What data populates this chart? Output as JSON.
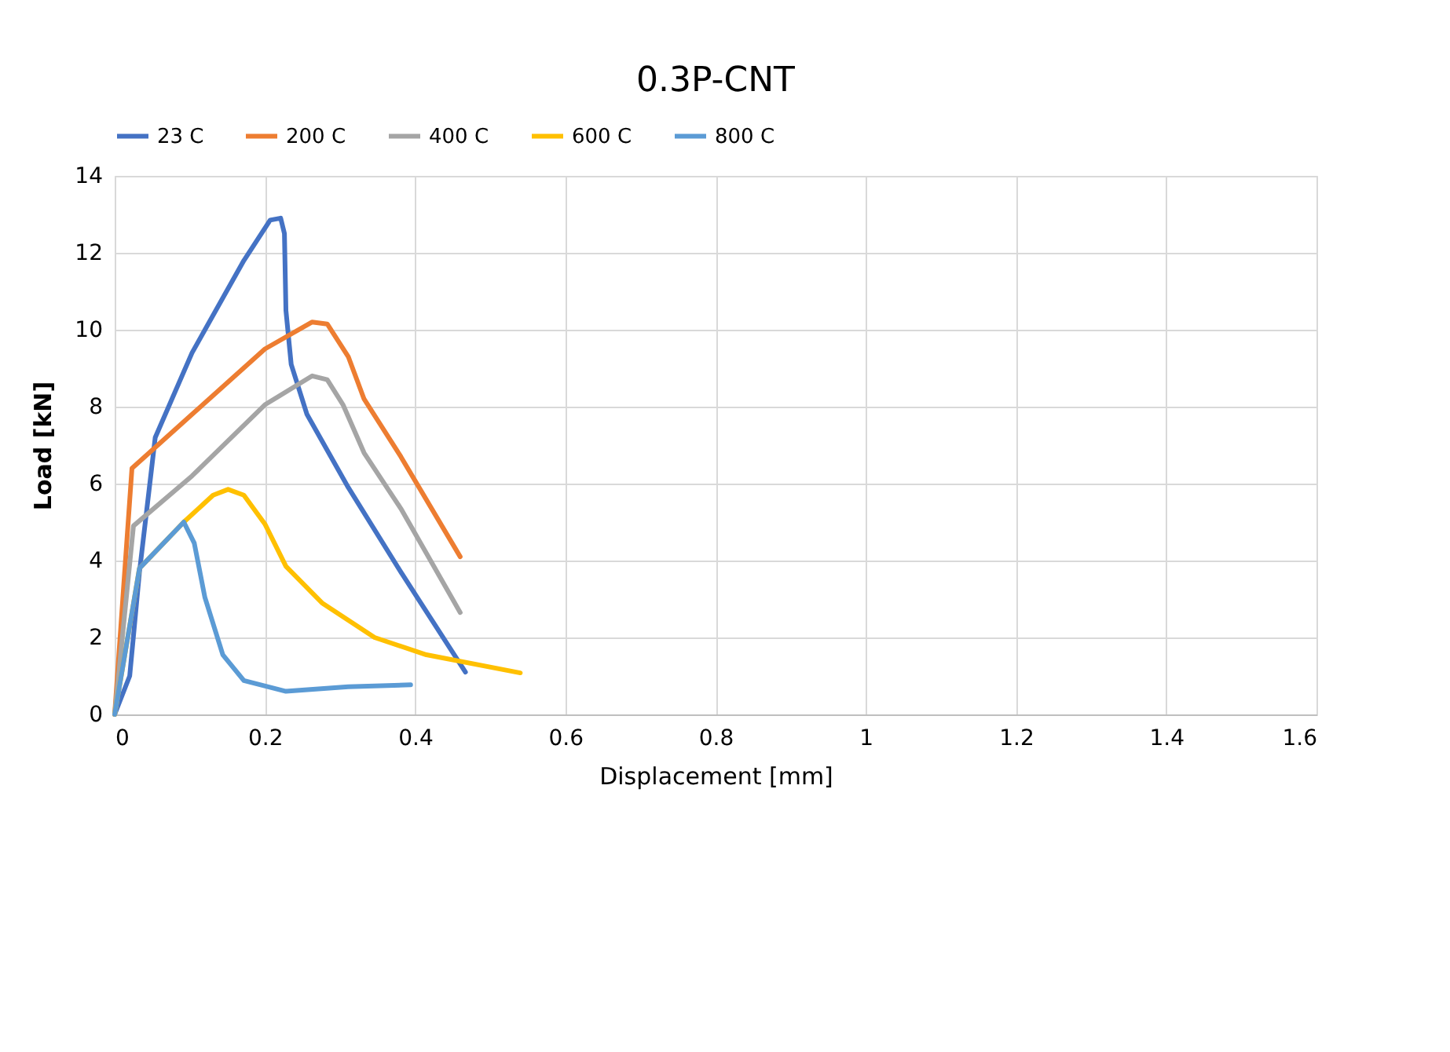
{
  "chart_data": {
    "type": "line",
    "title": "0.3P-CNT",
    "xlabel": "Displacement [mm]",
    "ylabel": "Load [kN]",
    "xlim": [
      0,
      1.6
    ],
    "xticks": [
      {
        "value": 0,
        "label": "0"
      },
      0.2,
      0.4,
      0.6,
      0.8,
      {
        "value": 1,
        "label": "1"
      },
      1.2,
      1.4,
      1.6
    ],
    "ylim": [
      0,
      14
    ],
    "yticks": [
      0,
      2,
      4,
      6,
      8,
      10,
      12,
      14
    ],
    "grid": true,
    "legend": "top",
    "marker": "none",
    "line_style": "solid",
    "series": [
      {
        "name": "23 C",
        "color": "#4472c4",
        "x": [
          0,
          0.02,
          0.033,
          0.054,
          0.103,
          0.172,
          0.207,
          0.221,
          0.226,
          0.228,
          0.235,
          0.256,
          0.311,
          0.381,
          0.467
        ],
        "values": [
          0,
          1.0,
          3.7,
          7.2,
          9.4,
          11.8,
          12.85,
          12.9,
          12.5,
          10.5,
          9.1,
          7.8,
          5.9,
          3.7,
          1.1
        ]
      },
      {
        "name": "200 C",
        "color": "#ed7d31",
        "x": [
          0,
          0.023,
          0.103,
          0.2,
          0.263,
          0.283,
          0.311,
          0.332,
          0.381,
          0.46
        ],
        "values": [
          0,
          6.4,
          7.8,
          9.5,
          10.2,
          10.15,
          9.3,
          8.2,
          6.7,
          4.1
        ]
      },
      {
        "name": "400 C",
        "color": "#a5a5a5",
        "x": [
          0,
          0.025,
          0.103,
          0.2,
          0.263,
          0.283,
          0.304,
          0.332,
          0.381,
          0.46
        ],
        "values": [
          0,
          4.9,
          6.2,
          8.05,
          8.8,
          8.7,
          8.05,
          6.8,
          5.35,
          2.65
        ]
      },
      {
        "name": "600 C",
        "color": "#ffc000",
        "x": [
          0,
          0.033,
          0.092,
          0.131,
          0.151,
          0.172,
          0.2,
          0.228,
          0.276,
          0.346,
          0.415,
          0.54
        ],
        "values": [
          0,
          3.8,
          5.0,
          5.7,
          5.85,
          5.7,
          4.95,
          3.85,
          2.9,
          2.0,
          1.55,
          1.08
        ]
      },
      {
        "name": "800 C",
        "color": "#5b9bd5",
        "x": [
          0,
          0.033,
          0.092,
          0.106,
          0.12,
          0.144,
          0.172,
          0.228,
          0.311,
          0.394
        ],
        "values": [
          0,
          3.8,
          5.0,
          4.45,
          3.05,
          1.55,
          0.88,
          0.6,
          0.72,
          0.77
        ]
      }
    ]
  }
}
